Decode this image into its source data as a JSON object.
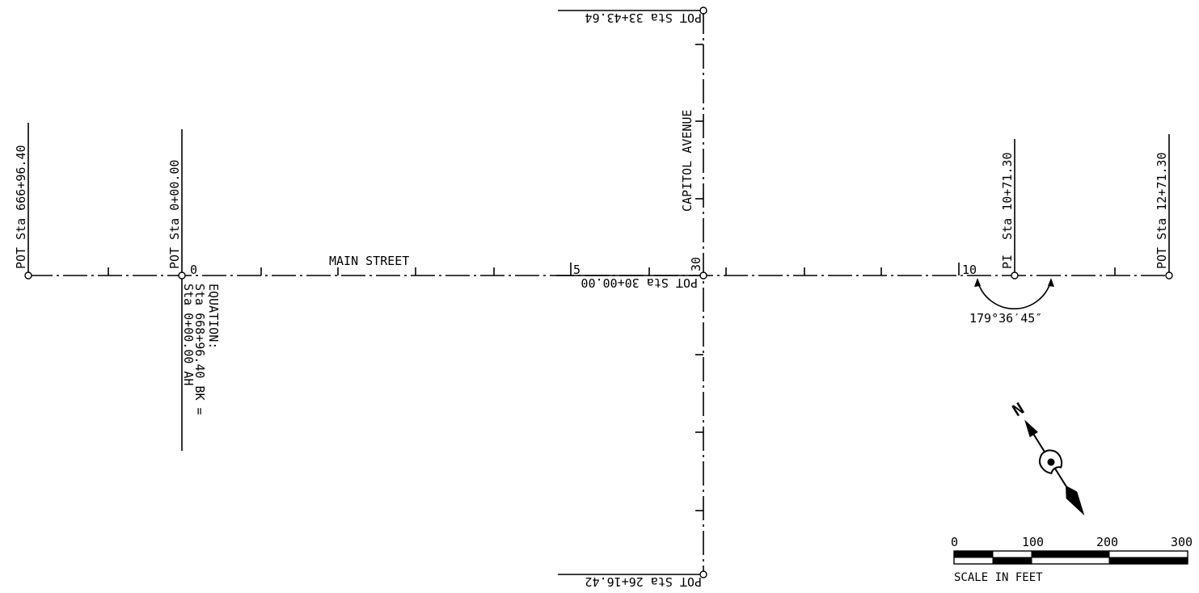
{
  "alignments": {
    "main_street": {
      "name": "MAIN STREET",
      "station_ticks": [
        "0",
        "5",
        "10"
      ],
      "points": {
        "pot_start": "POT Sta 666+96.40",
        "pot_zero": "POT Sta 0+00.00",
        "pi": "PI  Sta 10+71.30",
        "pot_end": "POT Sta 12+71.30"
      },
      "equation": {
        "title": "EQUATION:",
        "back": "Sta 668+96.40 BK =",
        "ahead": "Sta 0+00.00 AH"
      },
      "deflection_angle": "179°36′45″"
    },
    "capitol_avenue": {
      "name": "CAPITOL AVENUE",
      "station_tick": "30",
      "points": {
        "pot_top": "POT Sta 33+43.64",
        "pot_intersection": "POT Sta 30+00.00",
        "pot_bottom": "POT Sta 26+16.42"
      }
    }
  },
  "north_arrow": {
    "label": "N",
    "icon": "north-arrow-icon"
  },
  "scale_bar": {
    "ticks": [
      "0",
      "100",
      "200",
      "300"
    ],
    "caption": "SCALE IN FEET"
  },
  "colors": {
    "ink": "#000000",
    "paper": "#ffffff"
  }
}
